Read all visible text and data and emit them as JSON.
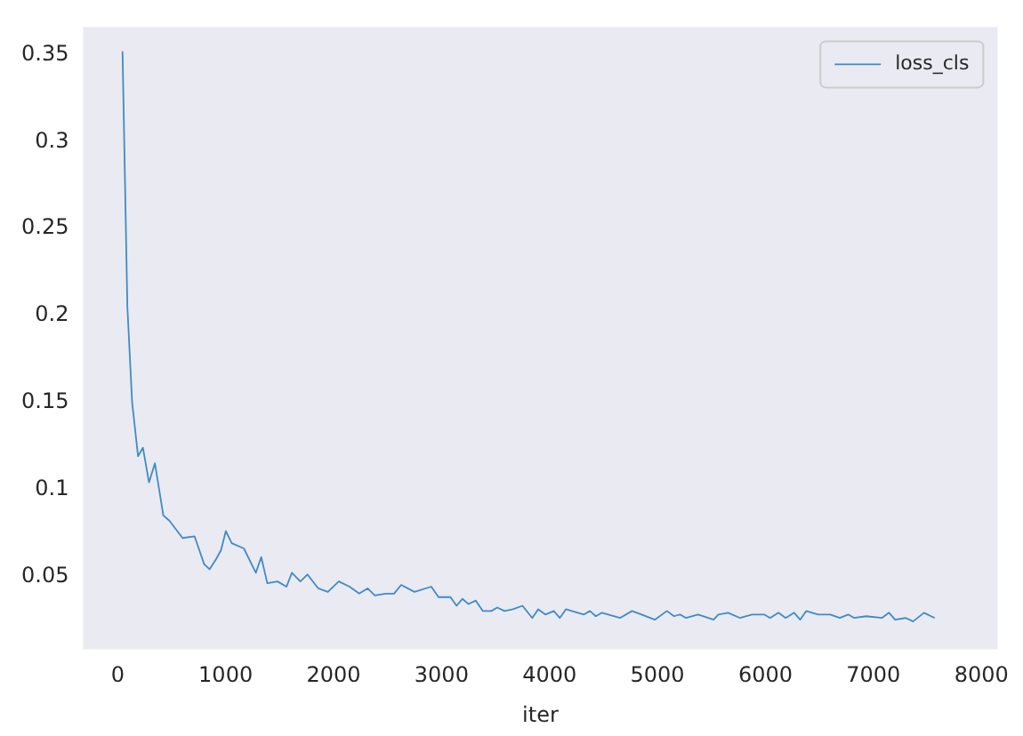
{
  "chart_data": {
    "type": "line",
    "xlabel": "iter",
    "legend": "top right",
    "grid": false,
    "marker": "none",
    "line_style": "solid",
    "xlim": [
      -320,
      8150
    ],
    "ylim": [
      0.008,
      0.366
    ],
    "xticks": [
      0,
      1000,
      2000,
      3000,
      4000,
      5000,
      6000,
      7000,
      8000
    ],
    "yticks": [
      0.05,
      0.1,
      0.15,
      0.2,
      0.25,
      0.3,
      0.35
    ],
    "series": [
      {
        "name": "loss_cls",
        "color": "#3f8bc4",
        "x": [
          45,
          90,
          134,
          189,
          234,
          290,
          345,
          423,
          479,
          601,
          712,
          801,
          851,
          913,
          957,
          1002,
          1057,
          1169,
          1280,
          1330,
          1386,
          1480,
          1564,
          1614,
          1692,
          1758,
          1858,
          1947,
          2048,
          2148,
          2237,
          2315,
          2382,
          2482,
          2560,
          2626,
          2749,
          2905,
          2972,
          3083,
          3139,
          3194,
          3250,
          3317,
          3383,
          3461,
          3517,
          3583,
          3661,
          3750,
          3840,
          3895,
          3962,
          4040,
          4095,
          4152,
          4262,
          4319,
          4374,
          4429,
          4486,
          4653,
          4764,
          4853,
          4975,
          5087,
          5154,
          5209,
          5264,
          5376,
          5520,
          5564,
          5654,
          5765,
          5876,
          5988,
          6043,
          6121,
          6188,
          6266,
          6322,
          6377,
          6489,
          6600,
          6689,
          6767,
          6822,
          6934,
          7078,
          7145,
          7201,
          7301,
          7368,
          7468,
          7568
        ],
        "values": [
          0.352,
          0.205,
          0.15,
          0.119,
          0.124,
          0.104,
          0.115,
          0.085,
          0.082,
          0.072,
          0.073,
          0.057,
          0.054,
          0.06,
          0.065,
          0.076,
          0.069,
          0.066,
          0.052,
          0.061,
          0.046,
          0.047,
          0.044,
          0.052,
          0.047,
          0.051,
          0.043,
          0.041,
          0.047,
          0.044,
          0.04,
          0.043,
          0.039,
          0.04,
          0.04,
          0.045,
          0.041,
          0.044,
          0.038,
          0.038,
          0.033,
          0.037,
          0.034,
          0.036,
          0.03,
          0.03,
          0.032,
          0.03,
          0.031,
          0.033,
          0.026,
          0.031,
          0.028,
          0.03,
          0.026,
          0.031,
          0.029,
          0.028,
          0.03,
          0.027,
          0.029,
          0.026,
          0.03,
          0.028,
          0.025,
          0.03,
          0.027,
          0.028,
          0.026,
          0.028,
          0.025,
          0.028,
          0.029,
          0.026,
          0.028,
          0.028,
          0.026,
          0.029,
          0.026,
          0.029,
          0.025,
          0.03,
          0.028,
          0.028,
          0.026,
          0.028,
          0.026,
          0.027,
          0.026,
          0.029,
          0.025,
          0.026,
          0.024,
          0.029,
          0.026
        ]
      }
    ]
  }
}
